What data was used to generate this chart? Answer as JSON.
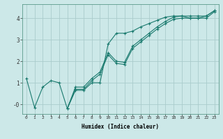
{
  "title": "",
  "xlabel": "Humidex (Indice chaleur)",
  "ylabel": "",
  "background_color": "#cce8e8",
  "grid_color": "#aacccc",
  "line_color": "#1a7a6e",
  "xlim": [
    -0.5,
    23.5
  ],
  "ylim": [
    -0.45,
    4.65
  ],
  "x_ticks": [
    0,
    1,
    2,
    3,
    4,
    5,
    6,
    7,
    8,
    9,
    10,
    11,
    12,
    13,
    14,
    15,
    16,
    17,
    18,
    19,
    20,
    21,
    22,
    23
  ],
  "y_ticks": [
    0,
    1,
    2,
    3,
    4
  ],
  "lines": [
    {
      "x": [
        0,
        1,
        2,
        3,
        4,
        5,
        6,
        7,
        8,
        9,
        10,
        11,
        12,
        13,
        14,
        15,
        16,
        17,
        18,
        19,
        20,
        21,
        22,
        23
      ],
      "y": [
        1.2,
        -0.15,
        0.8,
        1.1,
        1.0,
        -0.2,
        0.65,
        0.65,
        1.0,
        1.0,
        2.8,
        3.3,
        3.3,
        3.4,
        3.6,
        3.75,
        3.9,
        4.05,
        4.1,
        4.1,
        4.0,
        4.0,
        4.1,
        4.35
      ]
    },
    {
      "x": [
        5,
        6,
        7,
        8,
        9,
        10,
        11,
        12,
        13,
        14,
        15,
        16,
        17,
        18,
        19,
        20,
        21,
        22,
        23
      ],
      "y": [
        -0.2,
        0.8,
        0.8,
        1.2,
        1.5,
        2.4,
        2.0,
        1.95,
        2.7,
        3.0,
        3.3,
        3.6,
        3.85,
        4.05,
        4.1,
        4.1,
        4.1,
        4.1,
        4.35
      ]
    },
    {
      "x": [
        5,
        6,
        7,
        8,
        9,
        10,
        11,
        12,
        13,
        14,
        15,
        16,
        17,
        18,
        19,
        20,
        21,
        22,
        23
      ],
      "y": [
        -0.2,
        0.7,
        0.7,
        1.1,
        1.4,
        2.3,
        1.9,
        1.85,
        2.6,
        2.9,
        3.2,
        3.5,
        3.75,
        3.95,
        4.0,
        4.0,
        4.0,
        4.0,
        4.3
      ]
    }
  ]
}
